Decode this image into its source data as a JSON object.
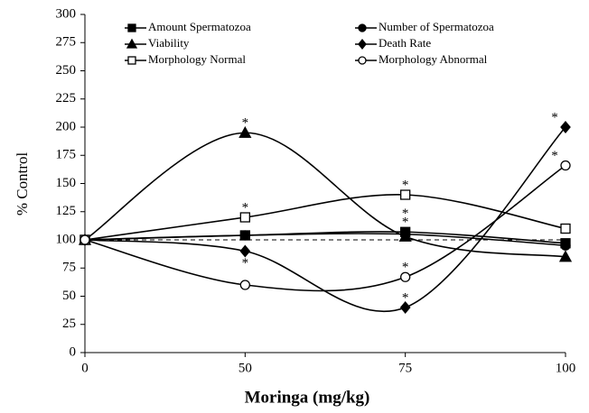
{
  "chart_data": {
    "type": "line",
    "x_label": "Moringa (mg/kg)",
    "y_label": "% Control",
    "categories": [
      "0",
      "50",
      "75",
      "100"
    ],
    "ylim": [
      0,
      300
    ],
    "yticks": [
      0,
      25,
      50,
      75,
      100,
      125,
      150,
      175,
      200,
      225,
      250,
      275,
      300
    ],
    "reference_line": 100,
    "series": [
      {
        "name": "Amount Spermatozoa",
        "marker": "square",
        "filled": true,
        "color": "#000000",
        "values": [
          100,
          104,
          107,
          97
        ]
      },
      {
        "name": "Number of Spermatozoa",
        "marker": "circle",
        "filled": true,
        "color": "#000000",
        "values": [
          100,
          104,
          105,
          95
        ]
      },
      {
        "name": "Viability",
        "marker": "triangle",
        "filled": true,
        "color": "#000000",
        "values": [
          100,
          195,
          103,
          85
        ]
      },
      {
        "name": "Death Rate",
        "marker": "diamond",
        "filled": true,
        "color": "#000000",
        "values": [
          100,
          90,
          40,
          200
        ]
      },
      {
        "name": "Morphology Normal",
        "marker": "square",
        "filled": false,
        "color": "#000000",
        "values": [
          100,
          120,
          140,
          110
        ]
      },
      {
        "name": "Morphology Abnormal",
        "marker": "circle",
        "filled": false,
        "color": "#000000",
        "values": [
          100,
          60,
          67,
          166
        ]
      }
    ],
    "annotations": [
      {
        "text": "*",
        "series": 2,
        "index": 1
      },
      {
        "text": "*",
        "series": 4,
        "index": 1
      },
      {
        "text": "*",
        "series": 3,
        "index": 1,
        "below": true
      },
      {
        "text": "*",
        "series": 4,
        "index": 2
      },
      {
        "text": "*",
        "series": 0,
        "index": 2
      },
      {
        "text": "*",
        "series": 1,
        "index": 2
      },
      {
        "text": "*",
        "series": 5,
        "index": 2
      },
      {
        "text": "*",
        "series": 3,
        "index": 2
      },
      {
        "text": "*",
        "series": 3,
        "index": 3
      },
      {
        "text": "*",
        "series": 5,
        "index": 3
      }
    ]
  }
}
